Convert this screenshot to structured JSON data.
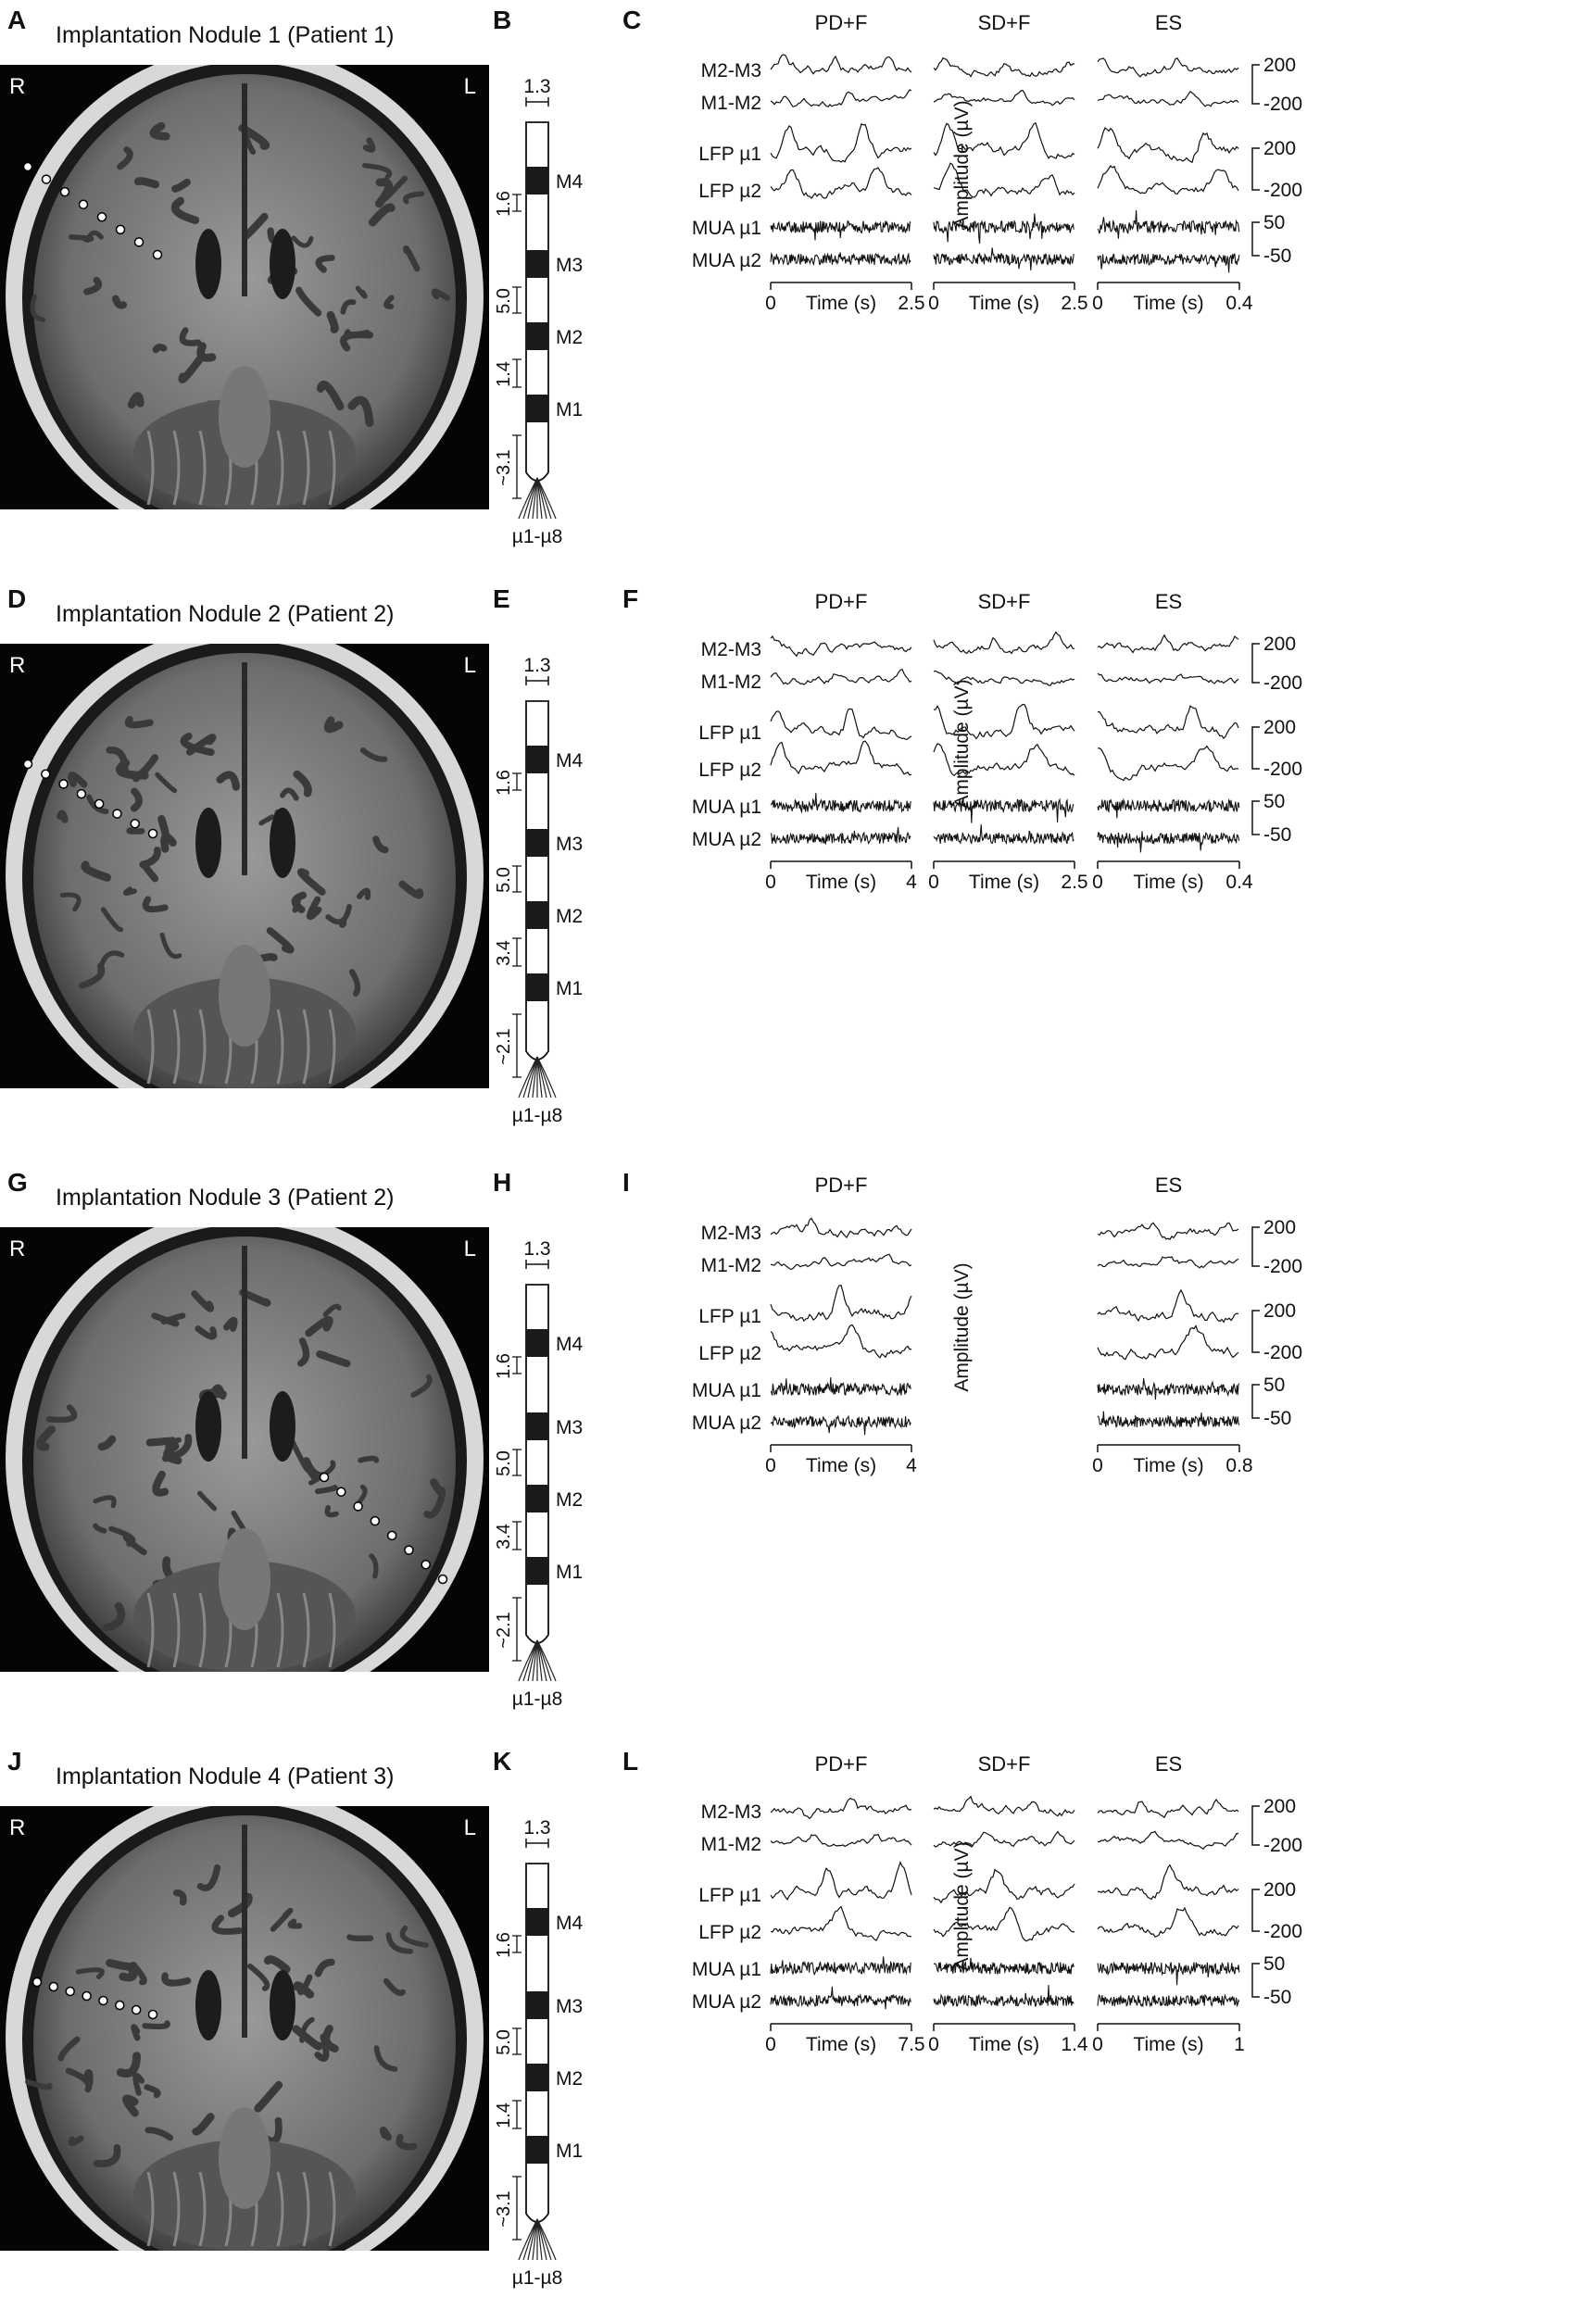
{
  "figure": {
    "rows": [
      {
        "letters": [
          "A",
          "B",
          "C"
        ],
        "mri_title": "Implantation Nodule 1 (Patient 1)",
        "side_right": "R",
        "side_left": "L",
        "electrode": {
          "top_spacing": "1.3",
          "spacings": [
            "1.6",
            "5.0",
            "1.4",
            "~3.1"
          ],
          "contacts": [
            "M4",
            "M3",
            "M2",
            "M1"
          ],
          "micro": "µ1-µ8"
        },
        "panels": [
          {
            "title": "PD+F",
            "x_start": "0",
            "x_label": "Time (s)",
            "x_end": "2.5"
          },
          {
            "title": "SD+F",
            "x_start": "0",
            "x_label": "Time (s)",
            "x_end": "2.5"
          },
          {
            "title": "ES",
            "x_start": "0",
            "x_label": "Time (s)",
            "x_end": "0.4"
          }
        ],
        "channels": [
          "M2-M3",
          "M1-M2",
          "LFP µ1",
          "LFP µ2",
          "MUA µ1",
          "MUA µ2"
        ],
        "scale": {
          "top1": "200",
          "bot1": "-200",
          "top2": "200",
          "bot2": "-200",
          "top3": "50",
          "bot3": "-50",
          "label": "Amplitude (µV)"
        }
      },
      {
        "letters": [
          "D",
          "E",
          "F"
        ],
        "mri_title": "Implantation Nodule 2 (Patient 2)",
        "side_right": "R",
        "side_left": "L",
        "electrode": {
          "top_spacing": "1.3",
          "spacings": [
            "1.6",
            "5.0",
            "3.4",
            "~2.1"
          ],
          "contacts": [
            "M4",
            "M3",
            "M2",
            "M1"
          ],
          "micro": "µ1-µ8"
        },
        "panels": [
          {
            "title": "PD+F",
            "x_start": "0",
            "x_label": "Time (s)",
            "x_end": "4"
          },
          {
            "title": "SD+F",
            "x_start": "0",
            "x_label": "Time (s)",
            "x_end": "2.5"
          },
          {
            "title": "ES",
            "x_start": "0",
            "x_label": "Time (s)",
            "x_end": "0.4"
          }
        ],
        "channels": [
          "M2-M3",
          "M1-M2",
          "LFP µ1",
          "LFP µ2",
          "MUA µ1",
          "MUA µ2"
        ],
        "scale": {
          "top1": "200",
          "bot1": "-200",
          "top2": "200",
          "bot2": "-200",
          "top3": "50",
          "bot3": "-50",
          "label": "Amplitude (µV)"
        }
      },
      {
        "letters": [
          "G",
          "H",
          "I"
        ],
        "mri_title": "Implantation Nodule 3 (Patient 2)",
        "side_right": "R",
        "side_left": "L",
        "electrode": {
          "top_spacing": "1.3",
          "spacings": [
            "1.6",
            "5.0",
            "3.4",
            "~2.1"
          ],
          "contacts": [
            "M4",
            "M3",
            "M2",
            "M1"
          ],
          "micro": "µ1-µ8"
        },
        "panels": [
          {
            "title": "PD+F",
            "x_start": "0",
            "x_label": "Time (s)",
            "x_end": "4"
          },
          {
            "title": "",
            "x_start": "",
            "x_label": "",
            "x_end": ""
          },
          {
            "title": "ES",
            "x_start": "0",
            "x_label": "Time (s)",
            "x_end": "0.8"
          }
        ],
        "channels": [
          "M2-M3",
          "M1-M2",
          "LFP µ1",
          "LFP µ2",
          "MUA µ1",
          "MUA µ2"
        ],
        "scale": {
          "top1": "200",
          "bot1": "-200",
          "top2": "200",
          "bot2": "-200",
          "top3": "50",
          "bot3": "-50",
          "label": "Amplitude (µV)"
        }
      },
      {
        "letters": [
          "J",
          "K",
          "L"
        ],
        "mri_title": "Implantation Nodule 4 (Patient 3)",
        "side_right": "R",
        "side_left": "L",
        "electrode": {
          "top_spacing": "1.3",
          "spacings": [
            "1.6",
            "5.0",
            "1.4",
            "~3.1"
          ],
          "contacts": [
            "M4",
            "M3",
            "M2",
            "M1"
          ],
          "micro": "µ1-µ8"
        },
        "panels": [
          {
            "title": "PD+F",
            "x_start": "0",
            "x_label": "Time (s)",
            "x_end": "7.5"
          },
          {
            "title": "SD+F",
            "x_start": "0",
            "x_label": "Time (s)",
            "x_end": "1.4"
          },
          {
            "title": "ES",
            "x_start": "0",
            "x_label": "Time (s)",
            "x_end": "1"
          }
        ],
        "channels": [
          "M2-M3",
          "M1-M2",
          "LFP µ1",
          "LFP µ2",
          "MUA µ1",
          "MUA µ2"
        ],
        "scale": {
          "top1": "200",
          "bot1": "-200",
          "top2": "200",
          "bot2": "-200",
          "top3": "50",
          "bot3": "-50",
          "label": "Amplitude (µV)"
        }
      }
    ]
  }
}
